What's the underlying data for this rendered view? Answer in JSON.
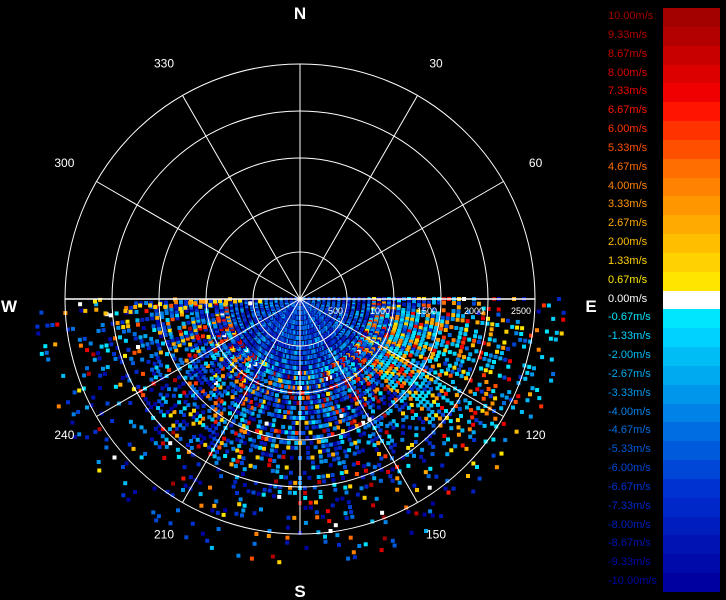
{
  "chart_data": {
    "type": "polar-radar",
    "direction_labels": {
      "north": "N",
      "south": "S",
      "east": "E",
      "west": "W"
    },
    "angle_labels": [
      "30",
      "60",
      "120",
      "150",
      "210",
      "240",
      "300",
      "330"
    ],
    "range_labels": [
      "500",
      "1000",
      "1500",
      "2000",
      "2500"
    ],
    "range_max": 2500,
    "spoke_step_deg": 30,
    "coverage": "lower half (90° through 270°)",
    "legend": {
      "unit": "m/s",
      "entries": [
        {
          "label": "10.00m/s",
          "color": "#a30000"
        },
        {
          "label": "9.33m/s",
          "color": "#b30000"
        },
        {
          "label": "8.67m/s",
          "color": "#c80000"
        },
        {
          "label": "8.00m/s",
          "color": "#dc0000"
        },
        {
          "label": "7.33m/s",
          "color": "#f00000"
        },
        {
          "label": "6.67m/s",
          "color": "#ff1400"
        },
        {
          "label": "6.00m/s",
          "color": "#ff3200"
        },
        {
          "label": "5.33m/s",
          "color": "#ff5000"
        },
        {
          "label": "4.67m/s",
          "color": "#ff6e00"
        },
        {
          "label": "4.00m/s",
          "color": "#ff8200"
        },
        {
          "label": "3.33m/s",
          "color": "#ff9600"
        },
        {
          "label": "2.67m/s",
          "color": "#ffaa00"
        },
        {
          "label": "2.00m/s",
          "color": "#ffbe00"
        },
        {
          "label": "1.33m/s",
          "color": "#ffd200"
        },
        {
          "label": "0.67m/s",
          "color": "#ffe600"
        },
        {
          "label": "0.00m/s",
          "color": "#ffffff"
        },
        {
          "label": "-0.67m/s",
          "color": "#00e6ff"
        },
        {
          "label": "-1.33m/s",
          "color": "#00d2ff"
        },
        {
          "label": "-2.00m/s",
          "color": "#00bef5"
        },
        {
          "label": "-2.67m/s",
          "color": "#00aaf0"
        },
        {
          "label": "-3.33m/s",
          "color": "#0096eb"
        },
        {
          "label": "-4.00m/s",
          "color": "#0082e6"
        },
        {
          "label": "-4.67m/s",
          "color": "#006ee1"
        },
        {
          "label": "-5.33m/s",
          "color": "#005adc"
        },
        {
          "label": "-6.00m/s",
          "color": "#0046d7"
        },
        {
          "label": "-6.67m/s",
          "color": "#0032d2"
        },
        {
          "label": "-7.33m/s",
          "color": "#0028c8"
        },
        {
          "label": "-8.00m/s",
          "color": "#001ebe"
        },
        {
          "label": "-8.67m/s",
          "color": "#0014b4"
        },
        {
          "label": "-9.33m/s",
          "color": "#000aaa"
        },
        {
          "label": "-10.00m/s",
          "color": "#0000a0"
        }
      ]
    }
  }
}
